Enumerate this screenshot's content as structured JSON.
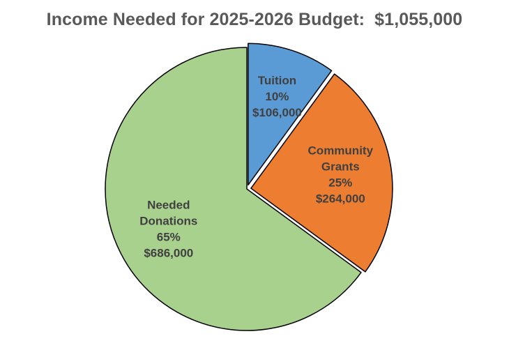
{
  "chart_data": {
    "type": "pie",
    "title": "Income Needed for 2025-2026 Budget:  $1,055,000",
    "slices": [
      {
        "label_lines": [
          "Tuition"
        ],
        "percent_label": "10%",
        "amount_label": "$106,000",
        "value": 106000,
        "color": "#5b9bd5",
        "exploded": true
      },
      {
        "label_lines": [
          "Community",
          "Grants"
        ],
        "percent_label": "25%",
        "amount_label": "$264,000",
        "value": 264000,
        "color": "#ed7d31",
        "exploded": true
      },
      {
        "label_lines": [
          "Needed",
          "Donations"
        ],
        "percent_label": "65%",
        "amount_label": "$686,000",
        "value": 686000,
        "color": "#a9d18e",
        "exploded": false
      }
    ],
    "legend": "none"
  }
}
